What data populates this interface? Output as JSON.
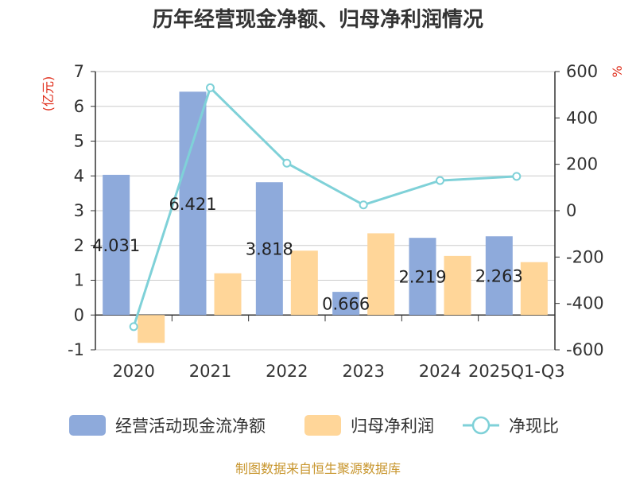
{
  "chart_data": {
    "type": "bar",
    "title": "历年经营现金净额、归母净利润情况",
    "categories": [
      "2020",
      "2021",
      "2022",
      "2023",
      "2024",
      "2025Q1-Q3"
    ],
    "left_axis_unit": "(亿元)",
    "right_axis_unit": "%",
    "ylim_left": [
      -1,
      7
    ],
    "yticks_left": [
      -1,
      0,
      1,
      2,
      3,
      4,
      5,
      6,
      7
    ],
    "ylim_right": [
      -600,
      600
    ],
    "yticks_right": [
      -600,
      -400,
      -200,
      0,
      200,
      400,
      600
    ],
    "series": [
      {
        "name": "经营活动现金流净额",
        "type": "bar",
        "axis": "left",
        "color": "#8eaadb",
        "values": [
          4.031,
          6.421,
          3.818,
          0.666,
          2.219,
          2.263
        ],
        "labels": [
          "4.031",
          "6.421",
          "3.818",
          "0.666",
          "2.219",
          "2.263"
        ]
      },
      {
        "name": "归母净利润",
        "type": "bar",
        "axis": "left",
        "color": "#ffd699",
        "values": [
          -0.8,
          1.2,
          1.85,
          2.35,
          1.7,
          1.52
        ]
      },
      {
        "name": "净现比",
        "type": "line",
        "axis": "right",
        "color": "#7fd1d8",
        "values": [
          -500,
          530,
          205,
          25,
          130,
          148
        ]
      }
    ],
    "grid": true,
    "legend_position": "bottom",
    "source": "制图数据来自恒生聚源数据库"
  }
}
